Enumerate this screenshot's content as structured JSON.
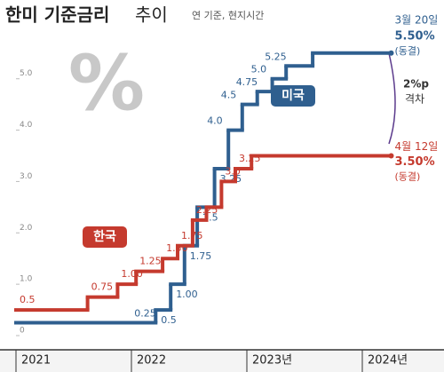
{
  "chart_data": {
    "type": "step",
    "title": "한미 기준금리",
    "title_suffix": "추이",
    "subtitle": "연 기준, 현지시간",
    "watermark": "%",
    "xlim": [
      2021,
      2024.3
    ],
    "ylim": [
      0,
      5.6
    ],
    "xticks": [
      {
        "value": 2021,
        "label": "2021"
      },
      {
        "value": 2022,
        "label": "2022"
      },
      {
        "value": 2023,
        "label": "2023년"
      },
      {
        "value": 2024,
        "label": "2024년"
      }
    ],
    "yticks": [
      0,
      {
        "value": 1,
        "label": "1.0"
      },
      {
        "value": 2,
        "label": "2.0"
      },
      {
        "value": 3,
        "label": "3.0"
      },
      {
        "value": 4,
        "label": "4.0"
      },
      {
        "value": 5,
        "label": "5.0"
      }
    ],
    "grid": false,
    "series": [
      {
        "name": "미국",
        "color": "#2f5f8f",
        "x": [
          2021,
          2022.21,
          2022.34,
          2022.46,
          2022.57,
          2022.72,
          2022.84,
          2022.96,
          2023.09,
          2023.22,
          2023.34,
          2023.57,
          2024.25
        ],
        "values": [
          0.25,
          0.5,
          1,
          1.75,
          2.5,
          3.25,
          4,
          4.5,
          4.75,
          5,
          5.25,
          5.5,
          5.5
        ],
        "value_labels": [
          "0.25",
          "0.5",
          "1.00",
          "1.75",
          "2.5",
          "3.25",
          "4.0",
          "4.5",
          "4.75",
          "5.0",
          "5.25",
          null,
          "5.50%"
        ],
        "end_note_date": "3월 20일",
        "end_note_status": "(동결)"
      },
      {
        "name": "한국",
        "color": "#c53a2e",
        "x": [
          2021,
          2021.62,
          2021.88,
          2022.04,
          2022.27,
          2022.4,
          2022.53,
          2022.65,
          2022.78,
          2022.9,
          2023.04,
          2024.25
        ],
        "values": [
          0.5,
          0.75,
          1,
          1.25,
          1.5,
          1.75,
          2.25,
          2.5,
          3,
          3.25,
          3.5,
          3.5
        ],
        "value_labels": [
          "0.5",
          "0.75",
          "1.00",
          "1.25",
          "1.50",
          "1.75",
          "2.25",
          null,
          "3.0",
          "3.25",
          null,
          "3.50%"
        ],
        "end_note_date": "4월 12일",
        "end_note_status": "(동결)"
      }
    ],
    "gap_label": "2%p",
    "gap_label_sub": "격차"
  }
}
